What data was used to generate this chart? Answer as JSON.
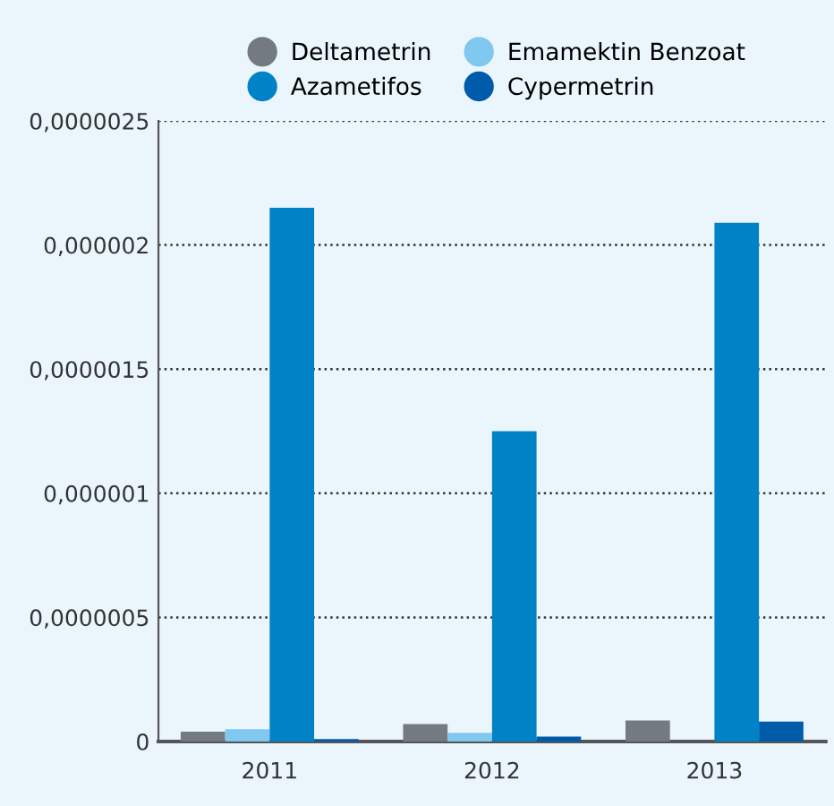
{
  "chart_data": {
    "type": "bar",
    "categories": [
      "2011",
      "2012",
      "2013"
    ],
    "series": [
      {
        "name": "Deltametrin",
        "color": "#737b80",
        "values": [
          4e-08,
          7e-08,
          8.5e-08
        ]
      },
      {
        "name": "Emamektin Benzoat",
        "color": "#80c8ef",
        "values": [
          5e-08,
          3.5e-08,
          0
        ]
      },
      {
        "name": "Azametifos",
        "color": "#0082c6",
        "values": [
          2.15e-06,
          1.25e-06,
          2.09e-06
        ]
      },
      {
        "name": "Cypermetrin",
        "color": "#005baa",
        "values": [
          1e-08,
          2e-08,
          8e-08
        ]
      }
    ],
    "ylim": [
      0,
      2.5e-06
    ],
    "yticks": [
      0,
      {
        "value": 5e-07,
        "label": "0,0000005"
      },
      {
        "value": 1e-06,
        "label": "0,000001"
      },
      {
        "value": 1.5e-06,
        "label": "0,0000015"
      },
      {
        "value": 2e-06,
        "label": "0,000002"
      },
      {
        "value": 2.5e-06,
        "label": "0,0000025"
      }
    ],
    "grid": "y",
    "line_style": "dotted",
    "legend": "top"
  }
}
